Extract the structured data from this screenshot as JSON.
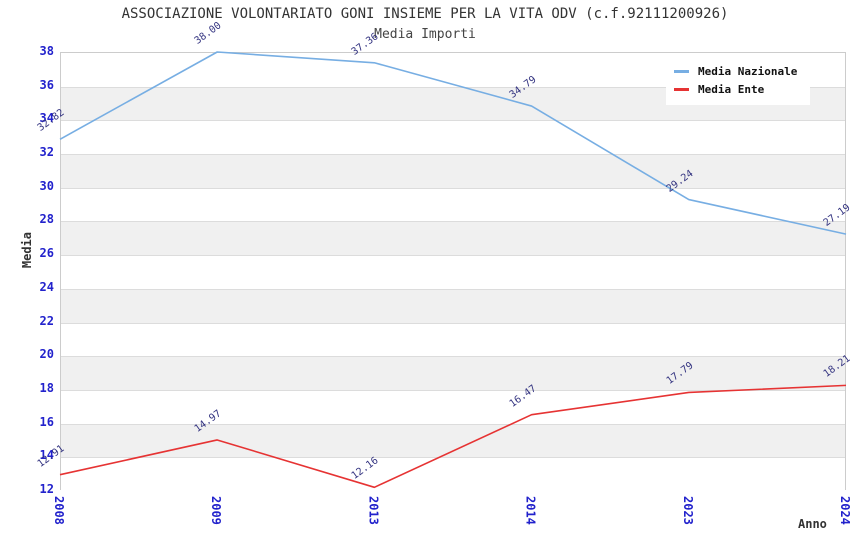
{
  "header": {
    "title": "ASSOCIAZIONE VOLONTARIATO GONI INSIEME PER LA VITA ODV (c.f.92111200926)",
    "subtitle": "Media Importi"
  },
  "legend": [
    {
      "label": "Media Nazionale",
      "color": "#77aee3"
    },
    {
      "label": "Media Ente",
      "color": "#e63333"
    }
  ],
  "chart_data": {
    "type": "line",
    "title": "ASSOCIAZIONE VOLONTARIATO GONI INSIEME PER LA VITA ODV (c.f.92111200926)",
    "subtitle": "Media Importi",
    "xlabel": "Anno",
    "ylabel": "Media",
    "categories": [
      "2008",
      "2009",
      "2013",
      "2014",
      "2023",
      "2024"
    ],
    "ylim": [
      12,
      38
    ],
    "ytick_step": 2,
    "yticks": [
      38,
      36,
      34,
      32,
      30,
      28,
      26,
      24,
      22,
      20,
      18,
      16,
      14,
      12
    ],
    "grid": "horizontal-bands",
    "legend_position": "top-right",
    "series": [
      {
        "name": "Media Nazionale",
        "color": "#77aee3",
        "values": [
          32.82,
          38.0,
          37.36,
          34.79,
          29.24,
          27.19
        ],
        "labels": [
          "32.82",
          "38.00",
          "37.36",
          "34.79",
          "29.24",
          "27.19"
        ]
      },
      {
        "name": "Media Ente",
        "color": "#e63333",
        "values": [
          12.91,
          14.97,
          12.16,
          16.47,
          17.79,
          18.21
        ],
        "labels": [
          "12.91",
          "14.97",
          "12.16",
          "16.47",
          "17.79",
          "18.21"
        ]
      }
    ]
  },
  "colors": {
    "tick_label": "#2222cc",
    "point_label": "#333380",
    "band_alt": "#f0f0f0",
    "band_main": "#ffffff",
    "gridline": "#dcdcdc",
    "frame": "#cccccc"
  }
}
